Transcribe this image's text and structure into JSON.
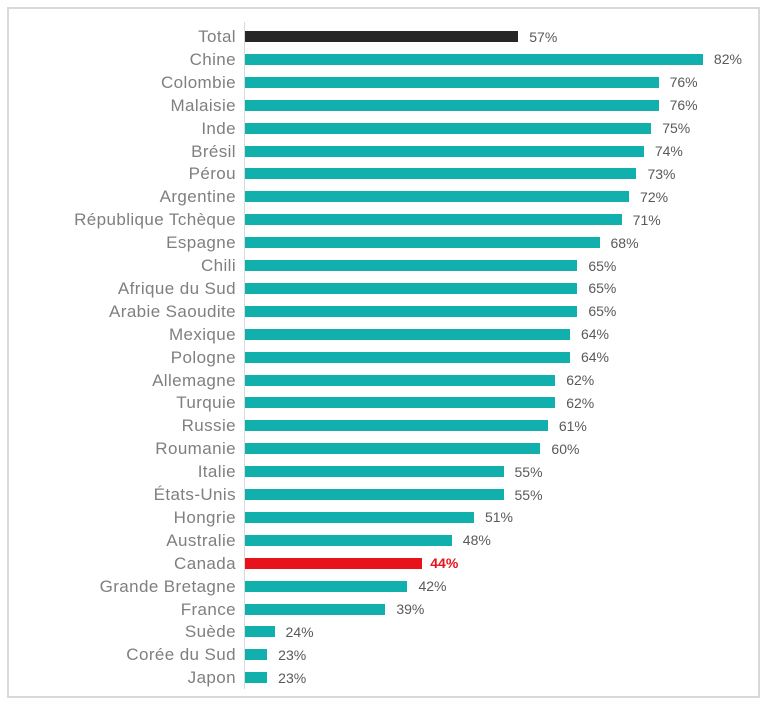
{
  "chart_data": {
    "type": "bar",
    "orientation": "horizontal",
    "title": "",
    "xlabel": "",
    "ylabel": "",
    "xlim": [
      20,
      90
    ],
    "grid": false,
    "legend": false,
    "value_suffix": "%",
    "categories": [
      "Total",
      "Chine",
      "Colombie",
      "Malaisie",
      "Inde",
      "Brésil",
      "Pérou",
      "Argentine",
      "République Tchèque",
      "Espagne",
      "Chili",
      "Afrique du Sud",
      "Arabie Saoudite",
      "Mexique",
      "Pologne",
      "Allemagne",
      "Turquie",
      "Russie",
      "Roumanie",
      "Italie",
      "États-Unis",
      "Hongrie",
      "Australie",
      "Canada",
      "Grande Bretagne",
      "France",
      "Suède",
      "Corée du Sud",
      "Japon"
    ],
    "values": [
      57,
      82,
      76,
      76,
      75,
      74,
      73,
      72,
      71,
      68,
      65,
      65,
      65,
      64,
      64,
      62,
      62,
      61,
      60,
      55,
      55,
      51,
      48,
      44,
      42,
      39,
      24,
      23,
      23
    ],
    "value_labels": [
      "57%",
      "82%",
      "76%",
      "76%",
      "75%",
      "74%",
      "73%",
      "72%",
      "71%",
      "68%",
      "65%",
      "65%",
      "65%",
      "64%",
      "64%",
      "62%",
      "62%",
      "61%",
      "60%",
      "55%",
      "55%",
      "51%",
      "48%",
      "44%",
      "42%",
      "39%",
      "24%",
      "23%",
      "23%"
    ],
    "row_styles": [
      "total",
      "default",
      "default",
      "default",
      "default",
      "default",
      "default",
      "default",
      "default",
      "default",
      "default",
      "default",
      "default",
      "default",
      "default",
      "default",
      "default",
      "default",
      "default",
      "default",
      "default",
      "default",
      "default",
      "highlight",
      "default",
      "default",
      "default",
      "default",
      "default"
    ]
  },
  "colors": {
    "bar_default": "#12B0AC",
    "bar_total": "#262626",
    "bar_highlight": "#E8121D",
    "category_label": "#7F7F7F",
    "value_label": "#595959",
    "value_label_highlight": "#E8121D",
    "axis_line": "#D9D9D9",
    "frame_border": "#D9D9D9",
    "background": "#FFFFFF"
  }
}
